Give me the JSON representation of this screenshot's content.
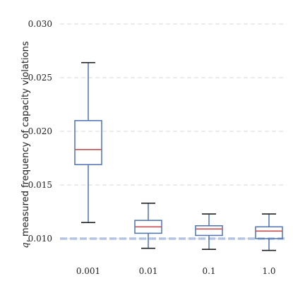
{
  "chart_data": {
    "type": "box",
    "title": "",
    "xlabel": "",
    "ylabel": "q, measured frequency of capacity violations",
    "ylabel_var": "q",
    "ylabel_text": ", measured frequency of capacity violations",
    "ylim": [
      0.0085,
      0.0305
    ],
    "yticks": [
      0.01,
      0.015,
      0.02,
      0.025,
      0.03
    ],
    "ytick_labels": [
      "0.010",
      "0.015",
      "0.020",
      "0.025",
      "0.030"
    ],
    "grid": "horizontal dashed",
    "reference_line": {
      "y": 0.01,
      "style": "dashed",
      "color": "#aabbe0"
    },
    "box_color": "#4c72b0",
    "median_color": "#c44e52",
    "whisker_cap_color": "#222222",
    "categories": [
      "0.001",
      "0.01",
      "0.1",
      "1.0"
    ],
    "boxes": [
      {
        "category": "0.001",
        "whisker_low": 0.0115,
        "q1": 0.0169,
        "median": 0.0183,
        "q3": 0.021,
        "whisker_high": 0.0264
      },
      {
        "category": "0.01",
        "whisker_low": 0.0091,
        "q1": 0.0105,
        "median": 0.0111,
        "q3": 0.0117,
        "whisker_high": 0.0133
      },
      {
        "category": "0.1",
        "whisker_low": 0.009,
        "q1": 0.0103,
        "median": 0.0109,
        "q3": 0.0112,
        "whisker_high": 0.0123
      },
      {
        "category": "1.0",
        "whisker_low": 0.0089,
        "q1": 0.01,
        "median": 0.0107,
        "q3": 0.0111,
        "whisker_high": 0.0123
      }
    ]
  }
}
